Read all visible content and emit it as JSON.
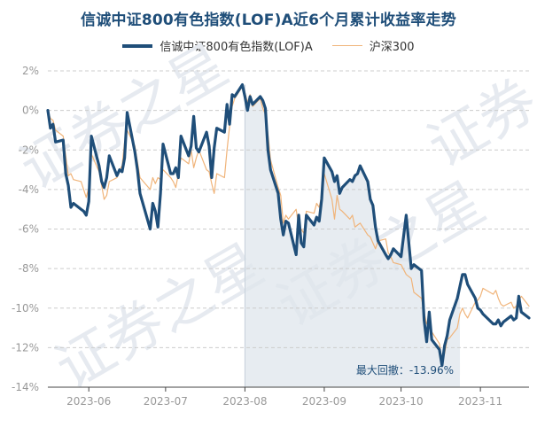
{
  "chart_data": {
    "type": "line",
    "title": "信诚中证800有色指数(LOF)A近6个月累计收益率走势",
    "ylim": [
      -14,
      2
    ],
    "yticks": [
      "2%",
      "0%",
      "-2%",
      "-4%",
      "-6%",
      "-8%",
      "-10%",
      "-12%",
      "-14%"
    ],
    "ytick_values": [
      2,
      0,
      -2,
      -4,
      -6,
      -8,
      -10,
      -12,
      -14
    ],
    "x_range": [
      "2023-05-16",
      "2023-11-20"
    ],
    "xticks": [
      {
        "date": "2023-06-01",
        "label": "2023-06"
      },
      {
        "date": "2023-07-01",
        "label": "2023-07"
      },
      {
        "date": "2023-08-01",
        "label": "2023-08"
      },
      {
        "date": "2023-09-01",
        "label": "2023-09"
      },
      {
        "date": "2023-10-01",
        "label": "2023-10"
      },
      {
        "date": "2023-11-01",
        "label": "2023-11"
      }
    ],
    "grid": "horizontal-dashed",
    "legend_position": "top",
    "drawdown_shading": {
      "start": "2023-08-01",
      "end": "2023-10-24"
    },
    "annotation": "最大回撤：-13.96%",
    "series": [
      {
        "name": "信诚中证800有色指数(LOF)A",
        "color": "#1f4e79",
        "points": [
          [
            "2023-05-16",
            0.0
          ],
          [
            "2023-05-17",
            -0.9
          ],
          [
            "2023-05-18",
            -0.7
          ],
          [
            "2023-05-19",
            -1.6
          ],
          [
            "2023-05-22",
            -1.5
          ],
          [
            "2023-05-23",
            -3.2
          ],
          [
            "2023-05-24",
            -3.8
          ],
          [
            "2023-05-25",
            -4.9
          ],
          [
            "2023-05-26",
            -4.7
          ],
          [
            "2023-05-29",
            -5.0
          ],
          [
            "2023-05-30",
            -5.1
          ],
          [
            "2023-05-31",
            -5.3
          ],
          [
            "2023-06-01",
            -4.6
          ],
          [
            "2023-06-02",
            -1.3
          ],
          [
            "2023-06-05",
            -2.8
          ],
          [
            "2023-06-06",
            -3.6
          ],
          [
            "2023-06-07",
            -3.9
          ],
          [
            "2023-06-08",
            -3.4
          ],
          [
            "2023-06-09",
            -2.3
          ],
          [
            "2023-06-12",
            -3.3
          ],
          [
            "2023-06-13",
            -3.0
          ],
          [
            "2023-06-14",
            -3.1
          ],
          [
            "2023-06-15",
            -2.4
          ],
          [
            "2023-06-16",
            -0.1
          ],
          [
            "2023-06-19",
            -2.1
          ],
          [
            "2023-06-20",
            -3.0
          ],
          [
            "2023-06-21",
            -4.2
          ],
          [
            "2023-06-25",
            -6.0
          ],
          [
            "2023-06-26",
            -4.7
          ],
          [
            "2023-06-27",
            -5.1
          ],
          [
            "2023-06-28",
            -5.9
          ],
          [
            "2023-06-29",
            -4.2
          ],
          [
            "2023-06-30",
            -1.7
          ],
          [
            "2023-07-03",
            -3.2
          ],
          [
            "2023-07-04",
            -3.2
          ],
          [
            "2023-07-05",
            -2.9
          ],
          [
            "2023-07-06",
            -3.4
          ],
          [
            "2023-07-07",
            -1.3
          ],
          [
            "2023-07-10",
            -2.3
          ],
          [
            "2023-07-11",
            -1.8
          ],
          [
            "2023-07-12",
            -0.3
          ],
          [
            "2023-07-13",
            -1.9
          ],
          [
            "2023-07-14",
            -2.1
          ],
          [
            "2023-07-17",
            -1.1
          ],
          [
            "2023-07-18",
            -1.8
          ],
          [
            "2023-07-19",
            -3.4
          ],
          [
            "2023-07-20",
            -1.9
          ],
          [
            "2023-07-21",
            -0.9
          ],
          [
            "2023-07-24",
            -1.1
          ],
          [
            "2023-07-25",
            0.3
          ],
          [
            "2023-07-26",
            -0.7
          ],
          [
            "2023-07-27",
            0.8
          ],
          [
            "2023-07-28",
            0.7
          ],
          [
            "2023-07-31",
            1.3
          ],
          [
            "2023-08-01",
            0.7
          ],
          [
            "2023-08-02",
            0.0
          ],
          [
            "2023-08-03",
            0.7
          ],
          [
            "2023-08-04",
            0.3
          ],
          [
            "2023-08-07",
            0.7
          ],
          [
            "2023-08-08",
            0.5
          ],
          [
            "2023-08-09",
            0.1
          ],
          [
            "2023-08-10",
            -2.0
          ],
          [
            "2023-08-11",
            -3.0
          ],
          [
            "2023-08-14",
            -4.2
          ],
          [
            "2023-08-15",
            -5.5
          ],
          [
            "2023-08-16",
            -6.3
          ],
          [
            "2023-08-17",
            -5.6
          ],
          [
            "2023-08-18",
            -5.7
          ],
          [
            "2023-08-21",
            -7.3
          ],
          [
            "2023-08-22",
            -5.3
          ],
          [
            "2023-08-23",
            -6.7
          ],
          [
            "2023-08-24",
            -6.9
          ],
          [
            "2023-08-25",
            -5.3
          ],
          [
            "2023-08-28",
            -5.8
          ],
          [
            "2023-08-29",
            -5.4
          ],
          [
            "2023-08-30",
            -5.6
          ],
          [
            "2023-08-31",
            -4.5
          ],
          [
            "2023-09-01",
            -2.4
          ],
          [
            "2023-09-04",
            -3.1
          ],
          [
            "2023-09-05",
            -3.6
          ],
          [
            "2023-09-06",
            -3.3
          ],
          [
            "2023-09-07",
            -4.2
          ],
          [
            "2023-09-08",
            -3.9
          ],
          [
            "2023-09-11",
            -3.5
          ],
          [
            "2023-09-12",
            -3.6
          ],
          [
            "2023-09-13",
            -3.3
          ],
          [
            "2023-09-14",
            -3.2
          ],
          [
            "2023-09-15",
            -2.8
          ],
          [
            "2023-09-18",
            -3.6
          ],
          [
            "2023-09-19",
            -4.5
          ],
          [
            "2023-09-20",
            -4.8
          ],
          [
            "2023-09-21",
            -5.9
          ],
          [
            "2023-09-22",
            -6.6
          ],
          [
            "2023-09-25",
            -7.3
          ],
          [
            "2023-09-26",
            -7.5
          ],
          [
            "2023-09-27",
            -7.3
          ],
          [
            "2023-09-28",
            -7.0
          ],
          [
            "2023-10-01",
            -7.4
          ],
          [
            "2023-10-03",
            -5.3
          ],
          [
            "2023-10-05",
            -8.0
          ],
          [
            "2023-10-06",
            -7.8
          ],
          [
            "2023-10-09",
            -8.1
          ],
          [
            "2023-10-10",
            -10.6
          ],
          [
            "2023-10-11",
            -11.7
          ],
          [
            "2023-10-12",
            -10.2
          ],
          [
            "2023-10-13",
            -11.6
          ],
          [
            "2023-10-16",
            -12.1
          ],
          [
            "2023-10-17",
            -12.9
          ],
          [
            "2023-10-18",
            -11.9
          ],
          [
            "2023-10-19",
            -11.4
          ],
          [
            "2023-10-20",
            -10.6
          ],
          [
            "2023-10-23",
            -9.5
          ],
          [
            "2023-10-24",
            -8.9
          ],
          [
            "2023-10-25",
            -8.3
          ],
          [
            "2023-10-26",
            -8.3
          ],
          [
            "2023-10-27",
            -8.8
          ],
          [
            "2023-10-30",
            -9.5
          ],
          [
            "2023-10-31",
            -10.0
          ],
          [
            "2023-11-01",
            -10.1
          ],
          [
            "2023-11-02",
            -10.3
          ],
          [
            "2023-11-06",
            -10.8
          ],
          [
            "2023-11-07",
            -10.8
          ],
          [
            "2023-11-08",
            -10.6
          ],
          [
            "2023-11-09",
            -10.9
          ],
          [
            "2023-11-10",
            -10.7
          ],
          [
            "2023-11-13",
            -10.4
          ],
          [
            "2023-11-14",
            -10.6
          ],
          [
            "2023-11-15",
            -10.5
          ],
          [
            "2023-11-16",
            -9.4
          ],
          [
            "2023-11-17",
            -10.2
          ],
          [
            "2023-11-20",
            -10.5
          ]
        ]
      },
      {
        "name": "沪深300",
        "color": "#f0b47a",
        "points": [
          [
            "2023-05-16",
            0.0
          ],
          [
            "2023-05-17",
            -0.4
          ],
          [
            "2023-05-18",
            -0.5
          ],
          [
            "2023-05-19",
            -1.0
          ],
          [
            "2023-05-22",
            -1.3
          ],
          [
            "2023-05-23",
            -2.3
          ],
          [
            "2023-05-24",
            -3.3
          ],
          [
            "2023-05-25",
            -3.2
          ],
          [
            "2023-05-26",
            -3.5
          ],
          [
            "2023-05-29",
            -3.6
          ],
          [
            "2023-05-30",
            -4.0
          ],
          [
            "2023-05-31",
            -4.4
          ],
          [
            "2023-06-01",
            -3.9
          ],
          [
            "2023-06-02",
            -2.2
          ],
          [
            "2023-06-05",
            -3.1
          ],
          [
            "2023-06-06",
            -3.8
          ],
          [
            "2023-06-07",
            -4.5
          ],
          [
            "2023-06-08",
            -4.3
          ],
          [
            "2023-06-09",
            -3.6
          ],
          [
            "2023-06-12",
            -3.4
          ],
          [
            "2023-06-13",
            -3.0
          ],
          [
            "2023-06-14",
            -2.8
          ],
          [
            "2023-06-15",
            -1.6
          ],
          [
            "2023-06-16",
            -1.0
          ],
          [
            "2023-06-19",
            -1.8
          ],
          [
            "2023-06-20",
            -2.6
          ],
          [
            "2023-06-21",
            -3.4
          ],
          [
            "2023-06-25",
            -4.0
          ],
          [
            "2023-06-26",
            -3.4
          ],
          [
            "2023-06-27",
            -3.7
          ],
          [
            "2023-06-28",
            -3.4
          ],
          [
            "2023-06-29",
            -3.5
          ],
          [
            "2023-06-30",
            -3.0
          ],
          [
            "2023-07-03",
            -3.4
          ],
          [
            "2023-07-04",
            -3.6
          ],
          [
            "2023-07-05",
            -3.9
          ],
          [
            "2023-07-06",
            -3.2
          ],
          [
            "2023-07-07",
            -2.4
          ],
          [
            "2023-07-10",
            -2.7
          ],
          [
            "2023-07-11",
            -2.0
          ],
          [
            "2023-07-12",
            -2.9
          ],
          [
            "2023-07-13",
            -2.4
          ],
          [
            "2023-07-14",
            -2.0
          ],
          [
            "2023-07-17",
            -3.0
          ],
          [
            "2023-07-18",
            -3.1
          ],
          [
            "2023-07-19",
            -3.7
          ],
          [
            "2023-07-20",
            -4.2
          ],
          [
            "2023-07-21",
            -3.2
          ],
          [
            "2023-07-24",
            -3.4
          ],
          [
            "2023-07-25",
            -2.0
          ],
          [
            "2023-07-26",
            -0.8
          ],
          [
            "2023-07-27",
            0.2
          ],
          [
            "2023-07-28",
            0.6
          ],
          [
            "2023-07-31",
            1.2
          ],
          [
            "2023-08-01",
            0.9
          ],
          [
            "2023-08-02",
            0.4
          ],
          [
            "2023-08-03",
            0.8
          ],
          [
            "2023-08-04",
            0.2
          ],
          [
            "2023-08-07",
            0.6
          ],
          [
            "2023-08-08",
            0.1
          ],
          [
            "2023-08-09",
            -0.2
          ],
          [
            "2023-08-10",
            -1.2
          ],
          [
            "2023-08-11",
            -2.5
          ],
          [
            "2023-08-14",
            -3.9
          ],
          [
            "2023-08-15",
            -4.3
          ],
          [
            "2023-08-16",
            -5.7
          ],
          [
            "2023-08-17",
            -5.3
          ],
          [
            "2023-08-18",
            -5.5
          ],
          [
            "2023-08-21",
            -5.0
          ],
          [
            "2023-08-22",
            -5.9
          ],
          [
            "2023-08-23",
            -6.0
          ],
          [
            "2023-08-24",
            -6.2
          ],
          [
            "2023-08-25",
            -5.1
          ],
          [
            "2023-08-28",
            -5.2
          ],
          [
            "2023-08-29",
            -4.7
          ],
          [
            "2023-08-30",
            -4.9
          ],
          [
            "2023-08-31",
            -4.3
          ],
          [
            "2023-09-01",
            -3.2
          ],
          [
            "2023-09-04",
            -4.5
          ],
          [
            "2023-09-05",
            -5.5
          ],
          [
            "2023-09-06",
            -4.3
          ],
          [
            "2023-09-07",
            -5.0
          ],
          [
            "2023-09-08",
            -5.1
          ],
          [
            "2023-09-11",
            -5.5
          ],
          [
            "2023-09-12",
            -5.3
          ],
          [
            "2023-09-13",
            -5.9
          ],
          [
            "2023-09-14",
            -5.8
          ],
          [
            "2023-09-15",
            -5.7
          ],
          [
            "2023-09-18",
            -6.3
          ],
          [
            "2023-09-19",
            -6.4
          ],
          [
            "2023-09-20",
            -6.7
          ],
          [
            "2023-09-21",
            -7.0
          ],
          [
            "2023-09-22",
            -6.6
          ],
          [
            "2023-09-25",
            -6.5
          ],
          [
            "2023-09-26",
            -7.2
          ],
          [
            "2023-09-27",
            -7.4
          ],
          [
            "2023-09-28",
            -7.7
          ],
          [
            "2023-10-01",
            -7.8
          ],
          [
            "2023-10-03",
            -8.3
          ],
          [
            "2023-10-05",
            -8.5
          ],
          [
            "2023-10-06",
            -9.2
          ],
          [
            "2023-10-09",
            -9.5
          ],
          [
            "2023-10-10",
            -10.2
          ],
          [
            "2023-10-11",
            -10.8
          ],
          [
            "2023-10-12",
            -10.5
          ],
          [
            "2023-10-13",
            -11.2
          ],
          [
            "2023-10-16",
            -11.8
          ],
          [
            "2023-10-17",
            -12.7
          ],
          [
            "2023-10-18",
            -12.3
          ],
          [
            "2023-10-19",
            -11.6
          ],
          [
            "2023-10-20",
            -11.5
          ],
          [
            "2023-10-23",
            -11.0
          ],
          [
            "2023-10-24",
            -10.3
          ],
          [
            "2023-10-25",
            -10.0
          ],
          [
            "2023-10-26",
            -10.3
          ],
          [
            "2023-10-27",
            -10.5
          ],
          [
            "2023-10-30",
            -9.7
          ],
          [
            "2023-10-31",
            -9.6
          ],
          [
            "2023-11-01",
            -9.4
          ],
          [
            "2023-11-02",
            -9.0
          ],
          [
            "2023-11-06",
            -9.3
          ],
          [
            "2023-11-07",
            -9.1
          ],
          [
            "2023-11-08",
            -9.5
          ],
          [
            "2023-11-09",
            -9.8
          ],
          [
            "2023-11-10",
            -9.9
          ],
          [
            "2023-11-13",
            -9.7
          ],
          [
            "2023-11-14",
            -10.0
          ],
          [
            "2023-11-15",
            -9.9
          ],
          [
            "2023-11-16",
            -9.6
          ],
          [
            "2023-11-17",
            -9.4
          ],
          [
            "2023-11-20",
            -9.9
          ]
        ]
      }
    ]
  }
}
